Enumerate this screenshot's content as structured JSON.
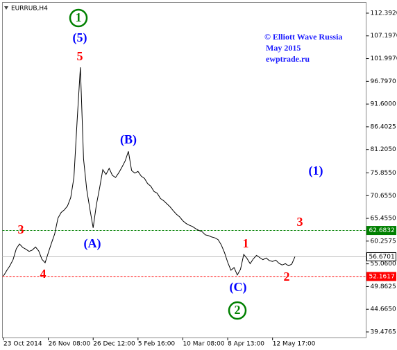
{
  "chart_data": {
    "type": "line",
    "title": "EURRUB,H4",
    "color": "#000000",
    "categories": [
      "23 Oct 2014",
      null,
      null,
      null,
      null,
      null,
      null,
      null,
      null,
      null,
      null,
      null,
      null,
      null,
      "26 Nov 08:00",
      null,
      null,
      null,
      null,
      null,
      null,
      null,
      null,
      null,
      null,
      null,
      null,
      null,
      "26 Dec 12:00",
      null,
      null,
      null,
      null,
      null,
      null,
      null,
      null,
      null,
      null,
      null,
      null,
      null,
      "5 Feb 16:00",
      null,
      null,
      null,
      null,
      null,
      null,
      null,
      null,
      null,
      null,
      null,
      null,
      null,
      "10 Mar 08:00",
      null,
      null,
      null,
      null,
      null,
      null,
      null,
      null,
      null,
      null,
      null,
      null,
      null,
      "8 Apr 13:00",
      null,
      null,
      null,
      null,
      null,
      null,
      null,
      null,
      null,
      null,
      null,
      null,
      null,
      "12 May 17:00",
      null,
      null,
      null,
      null,
      null,
      null,
      null
    ],
    "values": [
      52.3,
      53.5,
      54.6,
      56.0,
      58.5,
      59.6,
      58.8,
      58.4,
      57.9,
      58.2,
      58.9,
      58.0,
      56.1,
      55.3,
      57.6,
      59.8,
      61.9,
      65.5,
      66.8,
      67.4,
      68.3,
      70.2,
      74.8,
      88.0,
      100.0,
      79.0,
      72.0,
      67.5,
      63.3,
      68.5,
      72.4,
      76.6,
      75.5,
      76.9,
      75.3,
      74.8,
      75.9,
      77.2,
      78.6,
      80.8,
      76.4,
      75.8,
      76.2,
      75.1,
      74.6,
      73.4,
      72.8,
      71.6,
      71.2,
      70.0,
      69.5,
      68.8,
      68.1,
      67.2,
      66.4,
      65.8,
      64.9,
      64.3,
      63.9,
      63.6,
      63.1,
      62.7,
      62.4,
      61.7,
      61.5,
      61.2,
      61.0,
      60.6,
      59.4,
      57.6,
      55.4,
      53.6,
      54.2,
      52.5,
      53.8,
      57.2,
      56.3,
      55.1,
      56.2,
      57.0,
      56.5,
      56.0,
      56.4,
      55.8,
      55.6,
      55.9,
      55.2,
      54.8,
      55.1,
      54.6,
      55.0,
      56.7
    ],
    "ylim": [
      38.2,
      115.4
    ],
    "yticks": [
      {
        "value": 112.392,
        "label": "112.3920"
      },
      {
        "value": 107.197,
        "label": "107.1970"
      },
      {
        "value": 101.997,
        "label": "101.9970"
      },
      {
        "value": 96.797,
        "label": "96.7970"
      },
      {
        "value": 91.6,
        "label": "91.6000"
      },
      {
        "value": 86.4025,
        "label": "86.4025"
      },
      {
        "value": 81.205,
        "label": "81.2050"
      },
      {
        "value": 75.855,
        "label": "75.8550"
      },
      {
        "value": 70.655,
        "label": "70.6550"
      },
      {
        "value": 65.455,
        "label": "65.4550"
      },
      {
        "value": 60.2575,
        "label": "60.2575"
      },
      {
        "value": 55.06,
        "label": "55.0600"
      },
      {
        "value": 49.8625,
        "label": "49.8625"
      },
      {
        "value": 44.665,
        "label": "44.6650"
      },
      {
        "value": 39.4765,
        "label": "39.4765"
      }
    ],
    "levels": [
      {
        "value": 62.6832,
        "color": "#008000",
        "style": "dashed"
      },
      {
        "value": 56.6701,
        "color": "#c0c0c0",
        "style": "solid"
      },
      {
        "value": 52.1617,
        "color": "#ff0000",
        "style": "dashed"
      }
    ],
    "annotations": [
      {
        "text": "1",
        "color": "#008000",
        "circled": true
      },
      {
        "text": "(5)",
        "color": "#0000ff"
      },
      {
        "text": "5",
        "color": "#ff0000"
      },
      {
        "text": "(B)",
        "color": "#0000ff"
      },
      {
        "text": "(A)",
        "color": "#0000ff"
      },
      {
        "text": "3",
        "color": "#ff0000"
      },
      {
        "text": "4",
        "color": "#ff0000"
      },
      {
        "text": "1",
        "color": "#ff0000"
      },
      {
        "text": "2",
        "color": "#ff0000"
      },
      {
        "text": "3",
        "color": "#ff0000"
      },
      {
        "text": "(C)",
        "color": "#0000ff"
      },
      {
        "text": "2",
        "color": "#008000",
        "circled": true
      },
      {
        "text": "(1)",
        "color": "#0000ff"
      }
    ],
    "copyright": [
      "© Elliott Wave Russia",
      "May 2015",
      "ewptrade.ru"
    ]
  }
}
